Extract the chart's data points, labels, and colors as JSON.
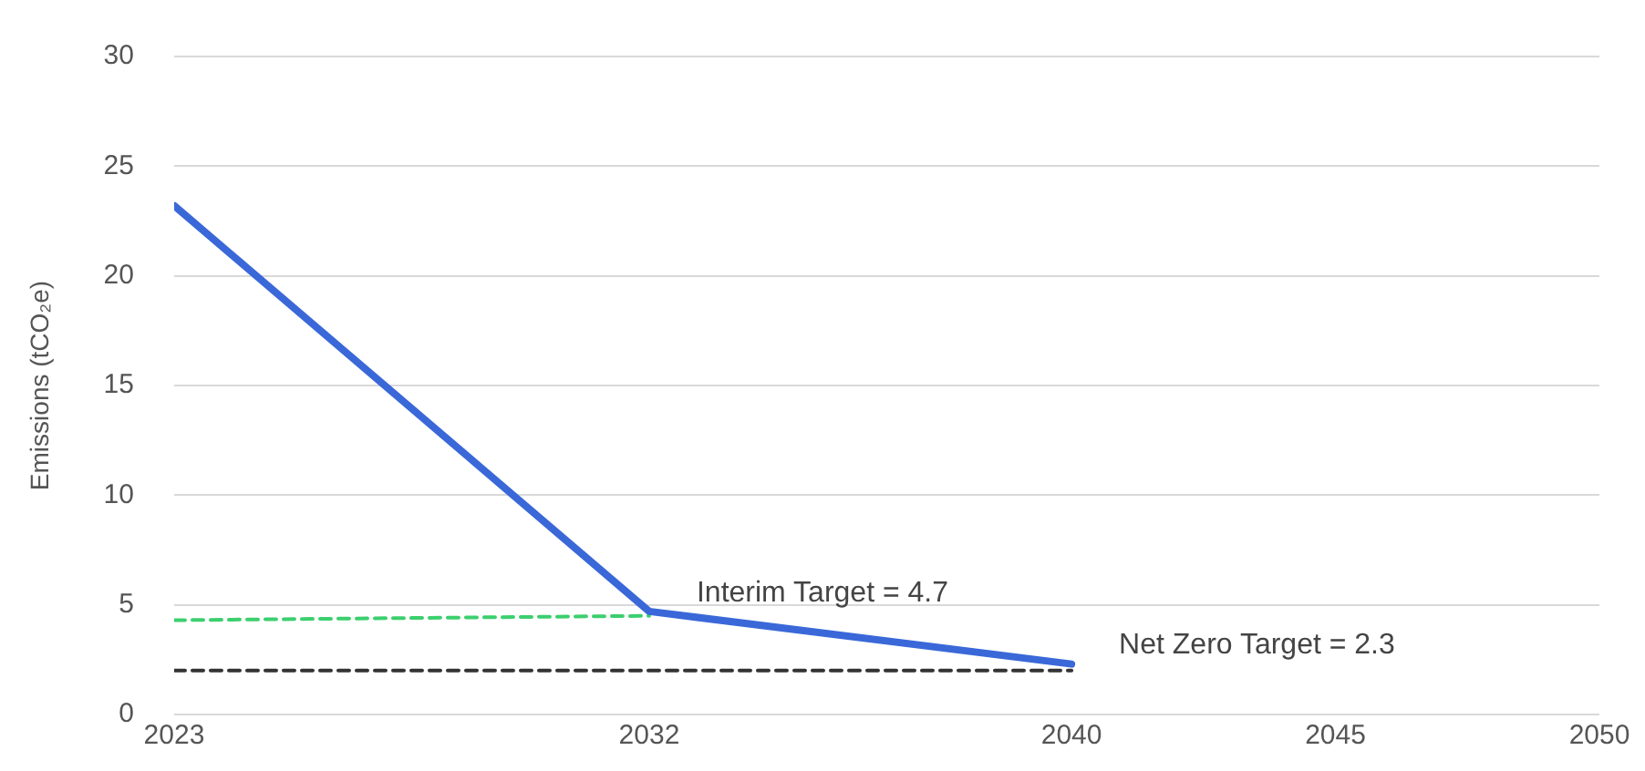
{
  "chart_data": {
    "type": "line",
    "ylabel": "Emissions (tCO₂e)",
    "xlim": [
      2023,
      2050
    ],
    "xticks": [
      2023,
      2032,
      2040,
      2045,
      2050
    ],
    "ylim": [
      0,
      30
    ],
    "yticks": [
      0,
      5,
      10,
      15,
      20,
      25,
      30
    ],
    "grid": "y",
    "legend": false,
    "marker": "none",
    "series": [
      {
        "x": [
          2023,
          2032,
          2040
        ],
        "values": [
          23.2,
          4.7,
          2.3
        ],
        "color": "#3a68d8",
        "line_style": "solid"
      },
      {
        "x": [
          2023,
          2032
        ],
        "values": [
          4.3,
          4.5
        ],
        "color": "#3ccf6e",
        "line_style": "dashed"
      },
      {
        "x": [
          2023,
          2040
        ],
        "values": [
          2.0,
          2.0
        ],
        "color": "#333333",
        "line_style": "dashed"
      }
    ],
    "annotations": [
      {
        "text": "Interim Target = 4.7",
        "x": 2032,
        "y": 4.7
      },
      {
        "text": "Net Zero Target = 2.3",
        "x": 2040,
        "y": 2.3
      }
    ]
  }
}
